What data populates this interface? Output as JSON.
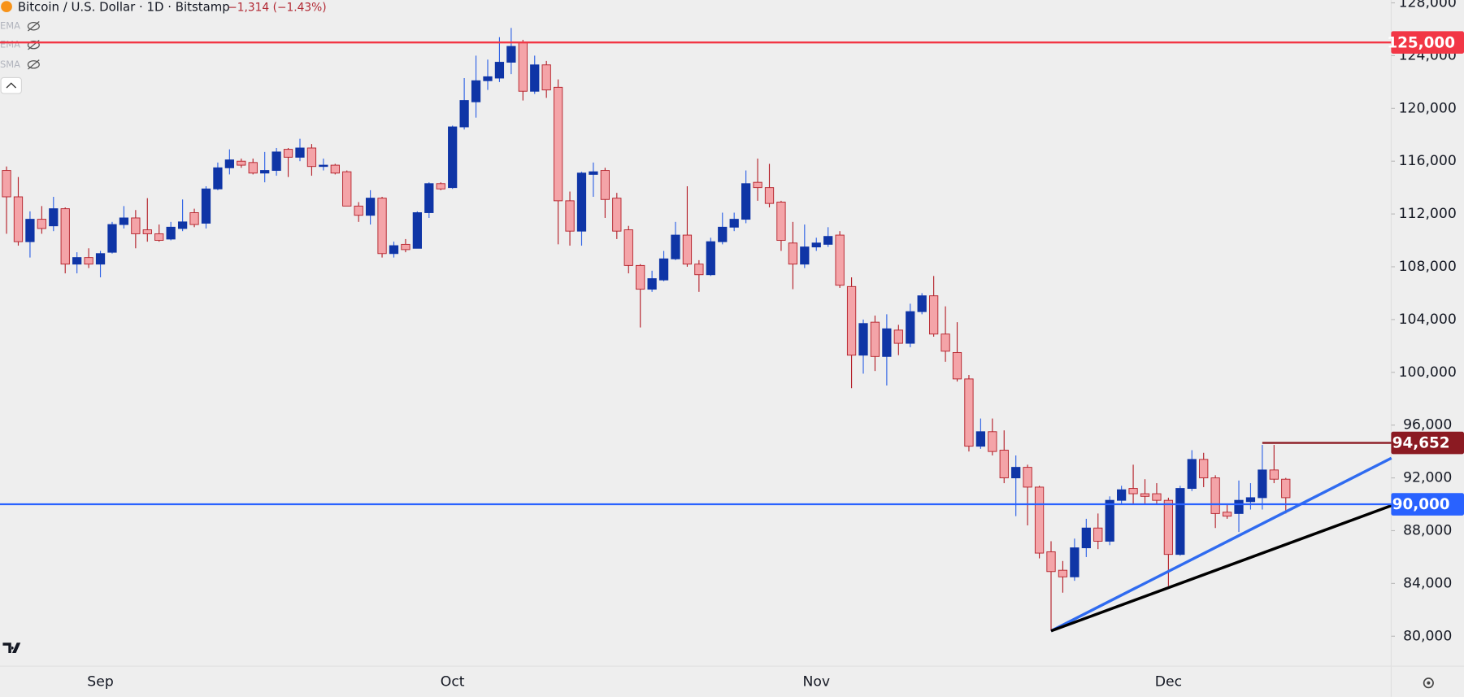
{
  "chart_data": {
    "type": "candlestick",
    "title": "Bitcoin / U.S. Dollar · 1D · Bitstamp",
    "change_label": "−1,314 (−1.43%)",
    "indicators": [
      "EMA",
      "EMA",
      "SMA"
    ],
    "categories": [
      null,
      null,
      null,
      null,
      null,
      null,
      null,
      null,
      "Sep",
      null,
      null,
      null,
      null,
      null,
      null,
      null,
      null,
      null,
      null,
      null,
      null,
      null,
      null,
      null,
      null,
      null,
      null,
      null,
      null,
      null,
      null,
      null,
      null,
      null,
      null,
      null,
      null,
      null,
      "Oct",
      null,
      null,
      null,
      null,
      null,
      null,
      null,
      null,
      null,
      null,
      null,
      null,
      null,
      null,
      null,
      null,
      null,
      null,
      null,
      null,
      null,
      null,
      null,
      null,
      null,
      null,
      null,
      null,
      null,
      null,
      "Nov",
      null,
      null,
      null,
      null,
      null,
      null,
      null,
      null,
      null,
      null,
      null,
      null,
      null,
      null,
      null,
      null,
      null,
      null,
      null,
      null,
      null,
      null,
      null,
      null,
      null,
      null,
      null,
      null,
      null,
      "Dec",
      null,
      null,
      null,
      null,
      null,
      null,
      null,
      null,
      null,
      null
    ],
    "open": [
      115300,
      113300,
      109900,
      111600,
      111100,
      112400,
      108200,
      108700,
      108200,
      109100,
      111200,
      111700,
      110800,
      110500,
      110100,
      110900,
      112100,
      111300,
      113900,
      115500,
      116000,
      115900,
      115100,
      115300,
      116900,
      116300,
      117000,
      115600,
      115700,
      115200,
      112600,
      111900,
      113200,
      109000,
      109700,
      109400,
      112100,
      114300,
      114000,
      118600,
      120500,
      122100,
      122300,
      123500,
      125000,
      121300,
      123300,
      121600,
      113000,
      110700,
      115000,
      115300,
      113200,
      110800,
      108100,
      106300,
      107000,
      108600,
      110400,
      108200,
      107400,
      109900,
      111000,
      111600,
      114400,
      114000,
      112900,
      109800,
      108200,
      109500,
      109700,
      110400,
      106500,
      101300,
      103800,
      101200,
      103200,
      102200,
      104600,
      105800,
      102900,
      101500,
      99500,
      94400,
      95500,
      94100,
      92000,
      92800,
      91300,
      86400,
      85000,
      84500,
      86700,
      88200,
      87200,
      90300,
      91200,
      90800,
      90800,
      90300,
      86200,
      91200,
      93400,
      92000,
      89400,
      89300,
      90200,
      90500,
      92600,
      91900
    ],
    "high": [
      115600,
      114800,
      112200,
      112600,
      113300,
      112500,
      109100,
      109400,
      109200,
      111400,
      112600,
      112300,
      113200,
      111200,
      111400,
      113100,
      112400,
      114100,
      115900,
      116900,
      116200,
      116200,
      116700,
      117000,
      117000,
      117700,
      117300,
      116200,
      115800,
      115300,
      112900,
      113800,
      113300,
      109900,
      110100,
      112200,
      114400,
      114400,
      118700,
      122300,
      124000,
      123700,
      125400,
      126100,
      125200,
      124000,
      123600,
      122200,
      113700,
      115200,
      115900,
      115500,
      113600,
      111100,
      108200,
      107700,
      109200,
      111400,
      114100,
      108500,
      110200,
      112100,
      112100,
      115300,
      116200,
      115800,
      113000,
      111400,
      111200,
      110200,
      111000,
      110700,
      107200,
      104000,
      104300,
      104400,
      103600,
      105200,
      106000,
      107300,
      105000,
      103800,
      99800,
      96500,
      96500,
      95600,
      93700,
      93000,
      91400,
      87200,
      85700,
      87400,
      88900,
      89300,
      90600,
      91400,
      93000,
      91900,
      91600,
      90500,
      91400,
      94100,
      93900,
      92200,
      90000,
      91800,
      91600,
      94500,
      94500,
      92000
    ],
    "low": [
      110500,
      109600,
      108700,
      110500,
      110700,
      107500,
      107500,
      107900,
      107200,
      109000,
      110900,
      109400,
      109900,
      109900,
      110000,
      110700,
      111000,
      110900,
      113800,
      115000,
      115500,
      115000,
      114400,
      114900,
      114800,
      116000,
      114900,
      115300,
      115000,
      112600,
      111400,
      111200,
      108700,
      108700,
      109100,
      109400,
      111700,
      113800,
      113900,
      118400,
      119300,
      121400,
      122000,
      122600,
      120600,
      121100,
      120800,
      109700,
      109600,
      109600,
      113300,
      111700,
      110100,
      107500,
      103400,
      106100,
      106900,
      108500,
      108000,
      106100,
      107300,
      109700,
      110700,
      111300,
      113000,
      112500,
      109200,
      106300,
      107900,
      109200,
      109500,
      106400,
      98800,
      99900,
      100100,
      99000,
      101300,
      101900,
      104400,
      102700,
      100800,
      99300,
      94000,
      94200,
      93700,
      91600,
      89100,
      88400,
      85900,
      80400,
      83300,
      84200,
      86000,
      86600,
      86900,
      90000,
      90000,
      90000,
      90000,
      83800,
      86100,
      91000,
      91300,
      88200,
      88900,
      87900,
      89600,
      89600,
      91600,
      89300
    ],
    "close": [
      113300,
      109900,
      111600,
      110900,
      112400,
      108200,
      108700,
      108200,
      109000,
      111200,
      111700,
      110500,
      110500,
      110000,
      111000,
      111400,
      111200,
      113900,
      115500,
      116100,
      115700,
      115100,
      115300,
      116700,
      116300,
      117000,
      115600,
      115700,
      115100,
      112600,
      111900,
      113200,
      109000,
      109600,
      109300,
      112100,
      114300,
      113900,
      118600,
      120600,
      122100,
      122400,
      123500,
      124700,
      121300,
      123300,
      121400,
      113000,
      110700,
      115100,
      115200,
      113100,
      110700,
      108100,
      106300,
      107100,
      108600,
      110400,
      108200,
      107400,
      109900,
      111000,
      111600,
      114300,
      114000,
      112800,
      110000,
      108200,
      109500,
      109800,
      110300,
      106600,
      101300,
      103700,
      101200,
      103300,
      102200,
      104600,
      105800,
      102900,
      101600,
      99500,
      94400,
      95500,
      94000,
      92000,
      92800,
      91300,
      86300,
      84900,
      84500,
      86700,
      88200,
      87200,
      90300,
      91100,
      90800,
      90600,
      90300,
      86200,
      91200,
      93400,
      92000,
      89300,
      89100,
      90300,
      90500,
      92600,
      91900,
      90500
    ],
    "up_color": "#0f35a6",
    "up_wick": "#2f63e6",
    "down_color": "#f4a4a8",
    "down_border": "#b5222b",
    "ylim": [
      77735,
      128212
    ],
    "yticks": [
      {
        "value": 80000,
        "label": "80,000"
      },
      {
        "value": 84000,
        "label": "84,000"
      },
      {
        "value": 88000,
        "label": "88,000"
      },
      {
        "value": 92000,
        "label": "92,000"
      },
      {
        "value": 96000,
        "label": "96,000"
      },
      {
        "value": 100000,
        "label": "100,000"
      },
      {
        "value": 104000,
        "label": "104,000"
      },
      {
        "value": 108000,
        "label": "108,000"
      },
      {
        "value": 112000,
        "label": "112,000"
      },
      {
        "value": 116000,
        "label": "116,000"
      },
      {
        "value": 120000,
        "label": "120,000"
      },
      {
        "value": 124000,
        "label": "124,000"
      },
      {
        "value": 128000,
        "label": "128,000"
      }
    ],
    "grid": false,
    "levels": [
      {
        "value": 125000,
        "label": "125,000",
        "color": "#f23645"
      },
      {
        "value": 94652,
        "label": "94,652",
        "color": "#8b1a22",
        "start": 107
      },
      {
        "value": 90000,
        "label": "90,000",
        "color": "#2962ff"
      }
    ],
    "trendlines": [
      {
        "color": "#2f6bf0",
        "x": [
          89,
          118
        ],
        "y": [
          80400,
          93500
        ]
      },
      {
        "color": "#000000",
        "x": [
          89,
          118
        ],
        "y": [
          80400,
          89900
        ]
      }
    ]
  }
}
